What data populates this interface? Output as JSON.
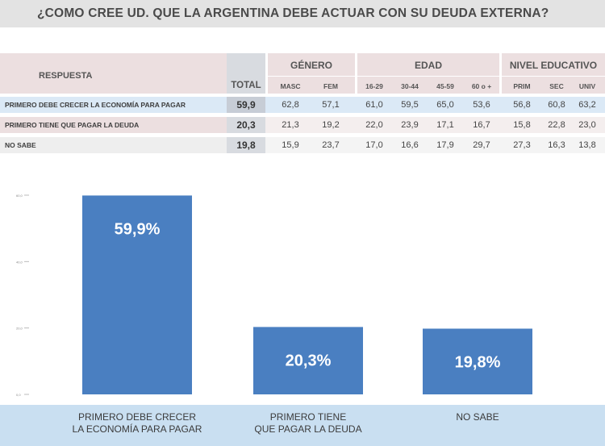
{
  "title": "¿COMO CREE UD. QUE LA ARGENTINA DEBE ACTUAR CON SU DEUDA EXTERNA?",
  "table": {
    "respuesta_header": "RESPUESTA",
    "total_header": "TOTAL",
    "groups": [
      {
        "name": "GÉNERO",
        "cols": [
          "MASC",
          "FEM"
        ]
      },
      {
        "name": "EDAD",
        "cols": [
          "16-29",
          "30-44",
          "45-59",
          "60 o +"
        ]
      },
      {
        "name": "NIVEL EDUCATIVO",
        "cols": [
          "PRIM",
          "SEC",
          "UNIV"
        ]
      }
    ],
    "rows": [
      {
        "label": "PRIMERO DEBE CRECER LA ECONOMÍA PARA PAGAR",
        "total": "59,9",
        "values": [
          "62,8",
          "57,1",
          "61,0",
          "59,5",
          "65,0",
          "53,6",
          "56,8",
          "60,8",
          "63,2"
        ]
      },
      {
        "label": "PRIMERO TIENE QUE PAGAR LA DEUDA",
        "total": "20,3",
        "values": [
          "21,3",
          "19,2",
          "22,0",
          "23,9",
          "17,1",
          "16,7",
          "15,8",
          "22,8",
          "23,0"
        ]
      },
      {
        "label": "NO SABE",
        "total": "19,8",
        "values": [
          "15,9",
          "23,7",
          "17,0",
          "16,6",
          "17,9",
          "29,7",
          "27,3",
          "16,3",
          "13,8"
        ]
      }
    ]
  },
  "chart_data": {
    "type": "bar",
    "categories": [
      "PRIMERO DEBE CRECER\nLA ECONOMÍA PARA PAGAR",
      "PRIMERO TIENE\nQUE PAGAR LA DEUDA",
      "NO SABE"
    ],
    "values": [
      59.9,
      20.3,
      19.8
    ],
    "data_labels": [
      "59,9%",
      "20,3%",
      "19,8%"
    ],
    "ylim": [
      0,
      60
    ],
    "yticks": [
      0,
      20,
      40,
      60
    ],
    "ytick_labels": [
      "0,0",
      "20,0",
      "40,0",
      "60,0"
    ],
    "title": "",
    "xlabel": "",
    "ylabel": "",
    "bar_color": "#4a7fc1",
    "footer_color": "#c9dff1"
  }
}
